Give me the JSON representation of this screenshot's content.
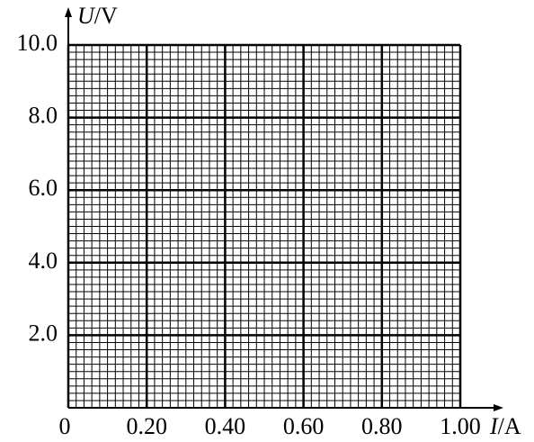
{
  "chart_data": {
    "type": "grid",
    "xlabel": "I/A",
    "ylabel": "U/V",
    "xlim": [
      0,
      1
    ],
    "ylim": [
      0,
      10
    ],
    "xticks": [
      0,
      {
        "value": 0.2,
        "label": "0.20"
      },
      {
        "value": 0.4,
        "label": "0.40"
      },
      {
        "value": 0.6,
        "label": "0.60"
      },
      {
        "value": 0.8,
        "label": "0.80"
      },
      {
        "value": 1,
        "label": "1.00"
      }
    ],
    "yticks": [
      {
        "value": 2,
        "label": "2.0"
      },
      {
        "value": 4,
        "label": "4.0"
      },
      {
        "value": 6,
        "label": "6.0"
      },
      {
        "value": 8,
        "label": "8.0"
      },
      {
        "value": 10,
        "label": "10.0"
      }
    ],
    "grid": true,
    "minor_divisions": 10,
    "color": "#000000"
  }
}
